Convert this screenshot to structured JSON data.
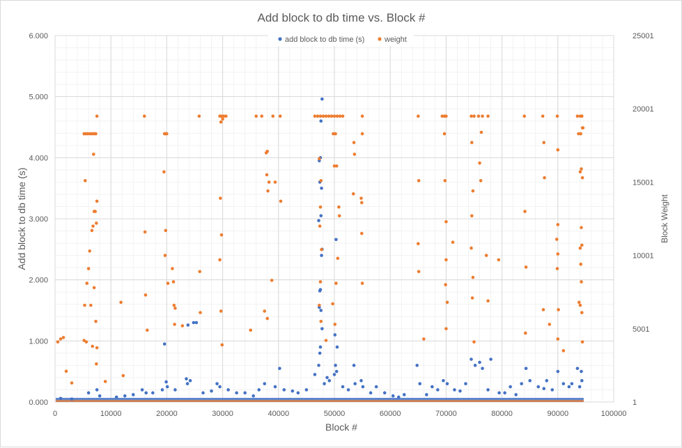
{
  "chart_data": {
    "type": "scatter",
    "title": "Add block to db time vs. Block #",
    "xlabel": "Block #",
    "ylabel": "Add block to db time (s)",
    "y2label": "Block Weight",
    "xlim": [
      0,
      100000
    ],
    "ylim": [
      0,
      6
    ],
    "y2lim": [
      1,
      25001
    ],
    "x_ticks": [
      "0",
      "10000",
      "20000",
      "30000",
      "40000",
      "50000",
      "60000",
      "70000",
      "80000",
      "90000",
      "100000"
    ],
    "y_ticks": [
      "0.000",
      "1.000",
      "2.000",
      "3.000",
      "4.000",
      "5.000",
      "6.000"
    ],
    "y2_ticks": [
      "1",
      "5001",
      "10001",
      "15001",
      "20001",
      "25001"
    ],
    "grid": true,
    "legend_position": "top",
    "colors": {
      "time": "#4472c4",
      "weight": "#ed7d31"
    },
    "series": [
      {
        "name": "add block to db time (s)",
        "axis": "left",
        "points": [
          [
            47800,
            4.96
          ],
          [
            47600,
            4.6
          ],
          [
            47500,
            4.0
          ],
          [
            47300,
            3.95
          ],
          [
            47400,
            3.6
          ],
          [
            47700,
            3.5
          ],
          [
            47600,
            3.05
          ],
          [
            47200,
            2.97
          ],
          [
            47800,
            2.5
          ],
          [
            47700,
            2.4
          ],
          [
            47500,
            1.84
          ],
          [
            47400,
            1.82
          ],
          [
            47300,
            1.55
          ],
          [
            47600,
            1.5
          ],
          [
            47800,
            1.2
          ],
          [
            47500,
            0.9
          ],
          [
            47400,
            0.8
          ],
          [
            47200,
            0.6
          ],
          [
            50300,
            2.66
          ],
          [
            50100,
            1.1
          ],
          [
            50500,
            0.9
          ],
          [
            50200,
            0.6
          ],
          [
            50400,
            0.5
          ],
          [
            50000,
            0.45
          ],
          [
            53500,
            0.6
          ],
          [
            53700,
            0.3
          ],
          [
            54800,
            0.35
          ],
          [
            55100,
            0.25
          ],
          [
            48700,
            0.4
          ],
          [
            49100,
            0.35
          ],
          [
            24800,
            1.3
          ],
          [
            25300,
            1.3
          ],
          [
            23800,
            1.26
          ],
          [
            23500,
            0.38
          ],
          [
            24200,
            0.35
          ],
          [
            23700,
            0.3
          ],
          [
            19600,
            0.95
          ],
          [
            19900,
            0.33
          ],
          [
            20100,
            0.25
          ],
          [
            19200,
            0.2
          ],
          [
            15600,
            0.2
          ],
          [
            16300,
            0.15
          ],
          [
            29000,
            0.3
          ],
          [
            29500,
            0.25
          ],
          [
            31000,
            0.2
          ],
          [
            34000,
            0.15
          ],
          [
            37500,
            0.3
          ],
          [
            39400,
            0.25
          ],
          [
            40200,
            0.55
          ],
          [
            41000,
            0.2
          ],
          [
            42500,
            0.18
          ],
          [
            43500,
            0.15
          ],
          [
            45000,
            0.2
          ],
          [
            57500,
            0.25
          ],
          [
            59000,
            0.15
          ],
          [
            60500,
            0.1
          ],
          [
            62500,
            0.12
          ],
          [
            64800,
            0.6
          ],
          [
            65300,
            0.3
          ],
          [
            67500,
            0.25
          ],
          [
            69500,
            0.35
          ],
          [
            70200,
            0.3
          ],
          [
            71500,
            0.2
          ],
          [
            73500,
            0.3
          ],
          [
            74500,
            0.7
          ],
          [
            75200,
            0.6
          ],
          [
            76000,
            0.65
          ],
          [
            76500,
            0.55
          ],
          [
            77500,
            0.2
          ],
          [
            78000,
            0.7
          ],
          [
            79500,
            0.15
          ],
          [
            81500,
            0.25
          ],
          [
            83500,
            0.3
          ],
          [
            84300,
            0.55
          ],
          [
            85000,
            0.35
          ],
          [
            86500,
            0.25
          ],
          [
            88000,
            0.35
          ],
          [
            89000,
            0.2
          ],
          [
            90000,
            0.5
          ],
          [
            91000,
            0.3
          ],
          [
            92500,
            0.3
          ],
          [
            93500,
            0.55
          ],
          [
            94200,
            0.5
          ],
          [
            94300,
            0.35
          ],
          [
            93900,
            0.25
          ],
          [
            6000,
            0.15
          ],
          [
            7500,
            0.2
          ],
          [
            8000,
            0.1
          ],
          [
            3000,
            0.05
          ],
          [
            1000,
            0.06
          ],
          [
            11000,
            0.08
          ],
          [
            12500,
            0.1
          ],
          [
            14000,
            0.12
          ],
          [
            17500,
            0.15
          ],
          [
            21500,
            0.2
          ],
          [
            26500,
            0.15
          ],
          [
            28000,
            0.18
          ],
          [
            32500,
            0.15
          ],
          [
            35500,
            0.1
          ],
          [
            36500,
            0.2
          ],
          [
            46500,
            0.45
          ],
          [
            48200,
            0.3
          ],
          [
            51500,
            0.25
          ],
          [
            52500,
            0.2
          ],
          [
            56500,
            0.15
          ],
          [
            61500,
            0.08
          ],
          [
            66500,
            0.12
          ],
          [
            68500,
            0.2
          ],
          [
            72500,
            0.18
          ],
          [
            80500,
            0.15
          ],
          [
            82500,
            0.12
          ],
          [
            87500,
            0.22
          ],
          [
            92000,
            0.25
          ]
        ]
      },
      {
        "name": "weight",
        "axis": "right",
        "points": [
          [
            500,
            4101
          ],
          [
            1000,
            4301
          ],
          [
            1500,
            4401
          ],
          [
            2000,
            2101
          ],
          [
            3000,
            1301
          ],
          [
            5200,
            18301
          ],
          [
            5500,
            18301
          ],
          [
            5800,
            18301
          ],
          [
            6200,
            18301
          ],
          [
            6500,
            18301
          ],
          [
            6800,
            18301
          ],
          [
            7100,
            18301
          ],
          [
            7300,
            18301
          ],
          [
            7500,
            19501
          ],
          [
            5400,
            15101
          ],
          [
            5700,
            8101
          ],
          [
            6000,
            9101
          ],
          [
            6200,
            10301
          ],
          [
            6600,
            11701
          ],
          [
            6800,
            12001
          ],
          [
            7000,
            13001
          ],
          [
            7200,
            13001
          ],
          [
            7400,
            12201
          ],
          [
            7500,
            13701
          ],
          [
            5300,
            6601
          ],
          [
            6400,
            6601
          ],
          [
            7000,
            7801
          ],
          [
            7300,
            5501
          ],
          [
            6900,
            16901
          ],
          [
            5200,
            4201
          ],
          [
            5600,
            4101
          ],
          [
            6700,
            3801
          ],
          [
            7500,
            3701
          ],
          [
            7400,
            2601
          ],
          [
            9000,
            1401
          ],
          [
            11800,
            6801
          ],
          [
            12200,
            1801
          ],
          [
            16000,
            19501
          ],
          [
            16100,
            11601
          ],
          [
            16200,
            7301
          ],
          [
            16500,
            4901
          ],
          [
            19600,
            18301
          ],
          [
            19800,
            18301
          ],
          [
            20000,
            18301
          ],
          [
            19500,
            15701
          ],
          [
            19800,
            11701
          ],
          [
            19700,
            10001
          ],
          [
            20200,
            8101
          ],
          [
            21000,
            9101
          ],
          [
            21200,
            8201
          ],
          [
            21300,
            6601
          ],
          [
            21500,
            6401
          ],
          [
            21400,
            5301
          ],
          [
            22800,
            5201
          ],
          [
            25800,
            19501
          ],
          [
            25900,
            8901
          ],
          [
            26000,
            6101
          ],
          [
            29500,
            19501
          ],
          [
            29800,
            19501
          ],
          [
            30200,
            19501
          ],
          [
            30600,
            19501
          ],
          [
            29700,
            19101
          ],
          [
            30000,
            19301
          ],
          [
            29600,
            13901
          ],
          [
            29800,
            11401
          ],
          [
            29500,
            9701
          ],
          [
            29700,
            6201
          ],
          [
            29900,
            3901
          ],
          [
            36000,
            19501
          ],
          [
            37000,
            19501
          ],
          [
            37800,
            17001
          ],
          [
            38000,
            17101
          ],
          [
            37900,
            15501
          ],
          [
            38100,
            14401
          ],
          [
            38300,
            15001
          ],
          [
            37500,
            6201
          ],
          [
            38000,
            5701
          ],
          [
            38800,
            8301
          ],
          [
            39000,
            19501
          ],
          [
            39400,
            15001
          ],
          [
            40300,
            19501
          ],
          [
            40400,
            13701
          ],
          [
            35000,
            4901
          ],
          [
            46500,
            19501
          ],
          [
            47000,
            19501
          ],
          [
            47500,
            19501
          ],
          [
            48000,
            19501
          ],
          [
            48500,
            19501
          ],
          [
            49000,
            19501
          ],
          [
            49500,
            19501
          ],
          [
            50000,
            19501
          ],
          [
            50500,
            19501
          ],
          [
            51000,
            19501
          ],
          [
            51500,
            19501
          ],
          [
            50200,
            18301
          ],
          [
            49800,
            18301
          ],
          [
            47300,
            16601
          ],
          [
            47600,
            15101
          ],
          [
            47500,
            13301
          ],
          [
            47400,
            12001
          ],
          [
            47700,
            10401
          ],
          [
            47500,
            8201
          ],
          [
            47300,
            6601
          ],
          [
            47600,
            5501
          ],
          [
            50000,
            16101
          ],
          [
            50400,
            16101
          ],
          [
            50800,
            13301
          ],
          [
            50900,
            12701
          ],
          [
            50600,
            9801
          ],
          [
            50300,
            8101
          ],
          [
            50100,
            5301
          ],
          [
            49700,
            6701
          ],
          [
            48500,
            4201
          ],
          [
            53500,
            17701
          ],
          [
            53600,
            16901
          ],
          [
            53400,
            14201
          ],
          [
            54800,
            13901
          ],
          [
            54900,
            13601
          ],
          [
            55000,
            18301
          ],
          [
            55000,
            19501
          ],
          [
            54900,
            11501
          ],
          [
            55000,
            8101
          ],
          [
            65000,
            19501
          ],
          [
            65100,
            15101
          ],
          [
            65000,
            10801
          ],
          [
            65100,
            8901
          ],
          [
            66000,
            4301
          ],
          [
            69300,
            19501
          ],
          [
            69700,
            19501
          ],
          [
            70000,
            19501
          ],
          [
            69700,
            18301
          ],
          [
            69800,
            15101
          ],
          [
            70000,
            12301
          ],
          [
            69900,
            8001
          ],
          [
            70000,
            9701
          ],
          [
            70200,
            6801
          ],
          [
            70000,
            5001
          ],
          [
            71200,
            10901
          ],
          [
            74500,
            19501
          ],
          [
            75000,
            19501
          ],
          [
            75800,
            19501
          ],
          [
            76500,
            19501
          ],
          [
            77500,
            19501
          ],
          [
            74600,
            17701
          ],
          [
            74800,
            14401
          ],
          [
            74600,
            12701
          ],
          [
            74500,
            10501
          ],
          [
            74800,
            8501
          ],
          [
            74700,
            7101
          ],
          [
            75000,
            4101
          ],
          [
            76000,
            16301
          ],
          [
            76200,
            15101
          ],
          [
            76300,
            18401
          ],
          [
            77200,
            10001
          ],
          [
            77500,
            6901
          ],
          [
            79400,
            9701
          ],
          [
            84000,
            19501
          ],
          [
            84100,
            13001
          ],
          [
            84300,
            9201
          ],
          [
            84200,
            4701
          ],
          [
            87300,
            19501
          ],
          [
            87500,
            17701
          ],
          [
            87600,
            15301
          ],
          [
            87400,
            6301
          ],
          [
            88500,
            5301
          ],
          [
            89900,
            19501
          ],
          [
            90000,
            17201
          ],
          [
            90000,
            12101
          ],
          [
            89800,
            11101
          ],
          [
            90000,
            10101
          ],
          [
            89900,
            9101
          ],
          [
            90100,
            6301
          ],
          [
            90000,
            4301
          ],
          [
            91000,
            3501
          ],
          [
            93500,
            19501
          ],
          [
            94000,
            19501
          ],
          [
            94300,
            19501
          ],
          [
            94400,
            18701
          ],
          [
            94500,
            18701
          ],
          [
            93700,
            18301
          ],
          [
            94100,
            18301
          ],
          [
            94000,
            15701
          ],
          [
            94200,
            15901
          ],
          [
            94400,
            15301
          ],
          [
            94200,
            11901
          ],
          [
            94300,
            10701
          ],
          [
            94000,
            10501
          ],
          [
            94100,
            9401
          ],
          [
            94200,
            8201
          ],
          [
            94000,
            6601
          ],
          [
            94300,
            6101
          ],
          [
            94400,
            4101
          ],
          [
            93800,
            6801
          ]
        ]
      }
    ]
  }
}
